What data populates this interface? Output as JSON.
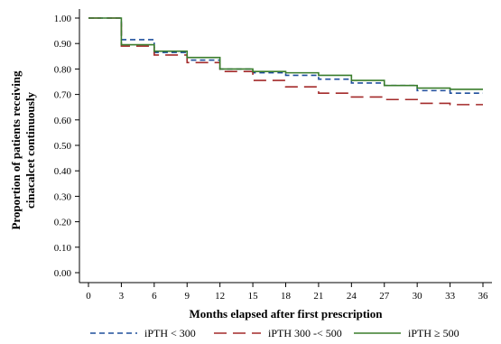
{
  "chart_data": {
    "type": "line",
    "step": true,
    "xlabel": "Months elapsed after first prescription",
    "ylabel_lines": [
      "Proportion of patients receiving",
      "cinacalcet continuously"
    ],
    "xlim": [
      0,
      36
    ],
    "ylim": [
      0,
      1
    ],
    "xticks": [
      0,
      3,
      6,
      9,
      12,
      15,
      18,
      21,
      24,
      27,
      30,
      33,
      36
    ],
    "yticks": [
      "0.00",
      "0.10",
      "0.20",
      "0.30",
      "0.40",
      "0.50",
      "0.60",
      "0.70",
      "0.80",
      "0.90",
      "1.00"
    ],
    "grid": false,
    "legend_position": "bottom",
    "series": [
      {
        "name": "iPTH < 300",
        "color": "#1f4e9c",
        "dash": "dashed",
        "x": [
          0,
          3,
          6,
          9,
          12,
          15,
          18,
          21,
          24,
          27,
          30,
          33,
          36
        ],
        "y": [
          1.0,
          0.915,
          0.865,
          0.835,
          0.8,
          0.785,
          0.775,
          0.76,
          0.745,
          0.735,
          0.715,
          0.705,
          0.705
        ]
      },
      {
        "name": "iPTH 300 -< 500",
        "color": "#a32a2a",
        "dash": "longdash",
        "x": [
          0,
          3,
          6,
          9,
          12,
          15,
          18,
          21,
          24,
          27,
          30,
          33,
          36
        ],
        "y": [
          1.0,
          0.89,
          0.855,
          0.825,
          0.79,
          0.755,
          0.73,
          0.705,
          0.69,
          0.68,
          0.665,
          0.66,
          0.66
        ]
      },
      {
        "name": "iPTH ≥ 500",
        "color": "#3a7d2c",
        "dash": "solid",
        "x": [
          0,
          3,
          6,
          9,
          12,
          15,
          18,
          21,
          24,
          27,
          30,
          33,
          36
        ],
        "y": [
          1.0,
          0.895,
          0.87,
          0.845,
          0.8,
          0.79,
          0.785,
          0.775,
          0.755,
          0.735,
          0.725,
          0.72,
          0.72
        ]
      }
    ]
  }
}
